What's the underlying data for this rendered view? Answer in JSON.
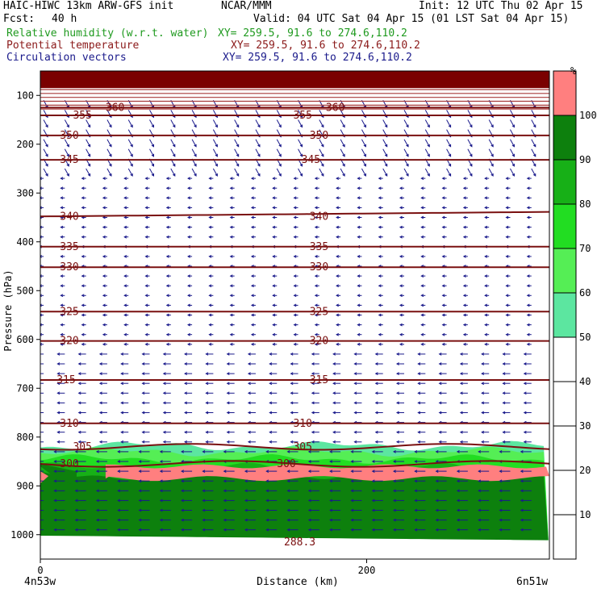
{
  "header": {
    "model": "HAIC-HIWC 13km ARW-GFS init",
    "org": "NCAR/MMM",
    "init": "Init: 12 UTC Thu 02 Apr 15",
    "fcst_label": "Fcst:",
    "fcst_value": "40 h",
    "valid": "Valid: 04 UTC Sat 04 Apr 15 (01 LST Sat 04 Apr 15)",
    "fields": [
      {
        "name": "Relative humidity (w.r.t. water)",
        "xy": "XY= 259.5, 91.6 to 274.6,110.2",
        "color": "#1f9a1f"
      },
      {
        "name": "Potential temperature",
        "xy": "XY= 259.5, 91.6 to 274.6,110.2",
        "color": "#8b1a1a"
      },
      {
        "name": "Circulation vectors",
        "xy": "XY= 259.5, 91.6 to 274.6,110.2",
        "color": "#1a1a8b"
      }
    ]
  },
  "chart_data": {
    "type": "cross-section",
    "xlabel": "Distance (km)",
    "ylabel": "Pressure (hPa)",
    "x_ticks": [
      0,
      200
    ],
    "xlim": [
      0,
      312
    ],
    "y_ticks": [
      100,
      200,
      300,
      400,
      500,
      600,
      700,
      800,
      900,
      1000
    ],
    "ylim": [
      50,
      1050
    ],
    "left_endpoint": "4n53w",
    "right_endpoint": "6n51w",
    "colorbar": {
      "unit": "%",
      "ticks": [
        10,
        20,
        30,
        40,
        50,
        60,
        70,
        80,
        90,
        100
      ],
      "bins": [
        {
          "from": 50,
          "to": 60,
          "color": "#5ce6a0"
        },
        {
          "from": 60,
          "to": 70,
          "color": "#55ee55"
        },
        {
          "from": 70,
          "to": 80,
          "color": "#22dd22"
        },
        {
          "from": 80,
          "to": 90,
          "color": "#17b017"
        },
        {
          "from": 90,
          "to": 100,
          "color": "#0d800d"
        },
        {
          "from": 100,
          "to": 110,
          "color": "#ff7f7f"
        }
      ]
    },
    "theta_contours": [
      {
        "value": 300,
        "label": "300",
        "pressure": 855
      },
      {
        "value": 305,
        "label": "305",
        "pressure": 820
      },
      {
        "value": 310,
        "label": "310",
        "pressure": 772
      },
      {
        "value": 315,
        "label": "315",
        "pressure": 683
      },
      {
        "value": 320,
        "label": "320",
        "pressure": 603
      },
      {
        "value": 325,
        "label": "325",
        "pressure": 543
      },
      {
        "value": 330,
        "label": "330",
        "pressure": 452
      },
      {
        "value": 335,
        "label": "335",
        "pressure": 410
      },
      {
        "value": 340,
        "label": "340",
        "pressure": 348
      },
      {
        "value": 345,
        "label": "345",
        "pressure": 232
      },
      {
        "value": 350,
        "label": "350",
        "pressure": 182
      },
      {
        "value": 355,
        "label": "355",
        "pressure": 141
      },
      {
        "value": 360,
        "label": "360",
        "pressure": 125
      }
    ],
    "surface_label": "288.3"
  }
}
